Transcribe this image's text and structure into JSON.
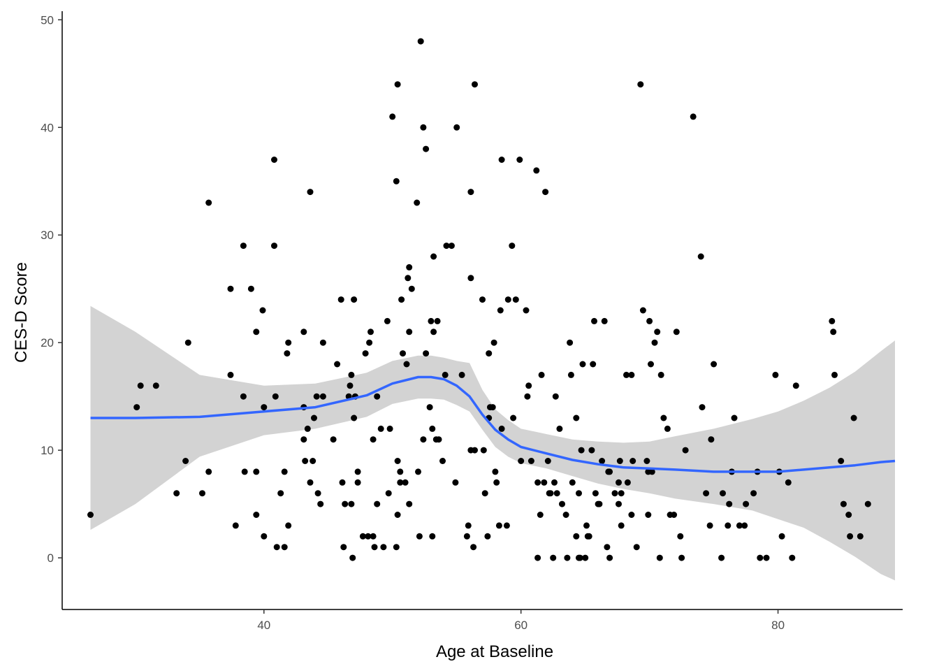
{
  "chart_data": {
    "type": "scatter",
    "title": "",
    "xlabel": "Age at Baseline",
    "ylabel": "CES-D Score",
    "xlim": [
      24.3,
      89.7
    ],
    "ylim": [
      -4.8,
      50.8
    ],
    "x_ticks": [
      40,
      60,
      80
    ],
    "y_ticks": [
      0,
      10,
      20,
      30,
      40,
      50
    ],
    "grid": false,
    "colors": {
      "points": "#000000",
      "smooth_line": "#3366ff",
      "ribbon": "#d3d3d3",
      "axis": "#000000"
    },
    "points": [
      [
        26.5,
        4
      ],
      [
        30.1,
        14
      ],
      [
        30.4,
        16
      ],
      [
        31.6,
        16
      ],
      [
        33.2,
        6
      ],
      [
        33.9,
        9
      ],
      [
        34.1,
        20
      ],
      [
        35.2,
        6
      ],
      [
        35.7,
        8
      ],
      [
        35.7,
        33
      ],
      [
        37.4,
        25
      ],
      [
        37.4,
        17
      ],
      [
        37.8,
        3
      ],
      [
        38.4,
        29
      ],
      [
        38.4,
        15
      ],
      [
        38.5,
        8
      ],
      [
        39.0,
        25
      ],
      [
        39.4,
        21
      ],
      [
        39.4,
        8
      ],
      [
        39.4,
        4
      ],
      [
        39.9,
        23
      ],
      [
        40.0,
        14
      ],
      [
        40.0,
        2
      ],
      [
        40.8,
        37
      ],
      [
        40.8,
        29
      ],
      [
        40.9,
        15
      ],
      [
        41.0,
        1
      ],
      [
        41.3,
        6
      ],
      [
        41.6,
        8
      ],
      [
        41.6,
        1
      ],
      [
        41.8,
        19
      ],
      [
        41.9,
        20
      ],
      [
        41.9,
        3
      ],
      [
        43.1,
        21
      ],
      [
        43.1,
        11
      ],
      [
        43.1,
        14
      ],
      [
        43.2,
        9
      ],
      [
        43.4,
        12
      ],
      [
        43.6,
        34
      ],
      [
        43.6,
        7
      ],
      [
        43.8,
        9
      ],
      [
        43.9,
        13
      ],
      [
        44.1,
        15
      ],
      [
        44.2,
        6
      ],
      [
        44.4,
        5
      ],
      [
        44.6,
        20
      ],
      [
        44.6,
        15
      ],
      [
        45.4,
        11
      ],
      [
        45.7,
        18
      ],
      [
        46.0,
        24
      ],
      [
        46.1,
        7
      ],
      [
        46.2,
        1
      ],
      [
        46.3,
        5
      ],
      [
        46.6,
        15
      ],
      [
        46.7,
        16
      ],
      [
        46.8,
        17
      ],
      [
        46.8,
        5
      ],
      [
        46.9,
        0
      ],
      [
        47.0,
        24
      ],
      [
        47.0,
        13
      ],
      [
        47.1,
        15
      ],
      [
        47.3,
        8
      ],
      [
        47.3,
        7
      ],
      [
        47.7,
        2
      ],
      [
        47.9,
        19
      ],
      [
        48.1,
        2
      ],
      [
        48.2,
        20
      ],
      [
        48.3,
        21
      ],
      [
        48.5,
        2
      ],
      [
        48.5,
        11
      ],
      [
        48.6,
        1
      ],
      [
        48.8,
        15
      ],
      [
        48.8,
        5
      ],
      [
        49.1,
        12
      ],
      [
        49.3,
        1
      ],
      [
        49.6,
        22
      ],
      [
        49.7,
        6
      ],
      [
        49.8,
        12
      ],
      [
        50.0,
        41
      ],
      [
        50.3,
        1
      ],
      [
        50.3,
        35
      ],
      [
        50.4,
        4
      ],
      [
        50.4,
        44
      ],
      [
        50.4,
        9
      ],
      [
        50.6,
        7
      ],
      [
        50.6,
        8
      ],
      [
        50.7,
        24
      ],
      [
        50.8,
        19
      ],
      [
        51.0,
        7
      ],
      [
        51.1,
        18
      ],
      [
        51.2,
        26
      ],
      [
        51.3,
        27
      ],
      [
        51.3,
        21
      ],
      [
        51.3,
        5
      ],
      [
        51.5,
        25
      ],
      [
        51.9,
        33
      ],
      [
        52.0,
        8
      ],
      [
        52.1,
        2
      ],
      [
        52.2,
        48
      ],
      [
        52.4,
        40
      ],
      [
        52.4,
        11
      ],
      [
        52.6,
        38
      ],
      [
        52.6,
        19
      ],
      [
        52.9,
        14
      ],
      [
        53.0,
        22
      ],
      [
        53.1,
        12
      ],
      [
        53.1,
        2
      ],
      [
        53.2,
        21
      ],
      [
        53.2,
        28
      ],
      [
        53.4,
        11
      ],
      [
        53.5,
        22
      ],
      [
        53.6,
        11
      ],
      [
        53.9,
        9
      ],
      [
        54.1,
        17
      ],
      [
        54.2,
        29
      ],
      [
        54.6,
        29
      ],
      [
        54.9,
        7
      ],
      [
        55.0,
        40
      ],
      [
        55.4,
        17
      ],
      [
        55.8,
        2
      ],
      [
        55.9,
        3
      ],
      [
        56.1,
        26
      ],
      [
        56.1,
        10
      ],
      [
        56.1,
        34
      ],
      [
        56.3,
        1
      ],
      [
        56.4,
        10
      ],
      [
        56.4,
        44
      ],
      [
        57.0,
        24
      ],
      [
        57.1,
        10
      ],
      [
        57.2,
        6
      ],
      [
        57.4,
        2
      ],
      [
        57.5,
        19
      ],
      [
        57.5,
        13
      ],
      [
        57.6,
        14
      ],
      [
        57.8,
        14
      ],
      [
        57.9,
        20
      ],
      [
        58.0,
        8
      ],
      [
        58.1,
        7
      ],
      [
        58.3,
        3
      ],
      [
        58.4,
        23
      ],
      [
        58.5,
        37
      ],
      [
        58.5,
        12
      ],
      [
        58.9,
        3
      ],
      [
        59.0,
        24
      ],
      [
        59.3,
        29
      ],
      [
        59.4,
        13
      ],
      [
        59.6,
        24
      ],
      [
        59.9,
        37
      ],
      [
        60.0,
        9
      ],
      [
        60.4,
        23
      ],
      [
        60.5,
        15
      ],
      [
        60.6,
        16
      ],
      [
        60.8,
        9
      ],
      [
        61.2,
        36
      ],
      [
        61.3,
        7
      ],
      [
        61.3,
        0
      ],
      [
        61.5,
        4
      ],
      [
        61.6,
        17
      ],
      [
        61.8,
        7
      ],
      [
        61.9,
        34
      ],
      [
        62.1,
        9
      ],
      [
        62.2,
        6
      ],
      [
        62.3,
        6
      ],
      [
        62.5,
        0
      ],
      [
        62.6,
        7
      ],
      [
        62.7,
        15
      ],
      [
        62.8,
        6
      ],
      [
        63.0,
        12
      ],
      [
        63.2,
        5
      ],
      [
        63.5,
        4
      ],
      [
        63.6,
        0
      ],
      [
        63.8,
        20
      ],
      [
        63.9,
        17
      ],
      [
        64.0,
        7
      ],
      [
        64.3,
        13
      ],
      [
        64.3,
        2
      ],
      [
        64.5,
        0
      ],
      [
        64.5,
        6
      ],
      [
        64.6,
        0
      ],
      [
        64.7,
        10
      ],
      [
        64.8,
        18
      ],
      [
        65.0,
        0
      ],
      [
        65.1,
        3
      ],
      [
        65.2,
        2
      ],
      [
        65.3,
        2
      ],
      [
        65.5,
        10
      ],
      [
        65.6,
        18
      ],
      [
        65.7,
        22
      ],
      [
        65.8,
        6
      ],
      [
        66.0,
        5
      ],
      [
        66.1,
        5
      ],
      [
        66.3,
        9
      ],
      [
        66.5,
        22
      ],
      [
        66.7,
        1
      ],
      [
        66.8,
        8
      ],
      [
        66.9,
        8
      ],
      [
        66.9,
        0
      ],
      [
        67.3,
        6
      ],
      [
        67.6,
        5
      ],
      [
        67.6,
        7
      ],
      [
        67.7,
        9
      ],
      [
        67.8,
        3
      ],
      [
        67.8,
        6
      ],
      [
        68.2,
        17
      ],
      [
        68.3,
        7
      ],
      [
        68.6,
        17
      ],
      [
        68.6,
        4
      ],
      [
        68.7,
        9
      ],
      [
        69.0,
        1
      ],
      [
        69.3,
        44
      ],
      [
        69.5,
        23
      ],
      [
        69.8,
        9
      ],
      [
        69.9,
        8
      ],
      [
        69.9,
        4
      ],
      [
        70.0,
        22
      ],
      [
        70.1,
        18
      ],
      [
        70.2,
        8
      ],
      [
        70.4,
        20
      ],
      [
        70.6,
        21
      ],
      [
        70.8,
        0
      ],
      [
        70.9,
        17
      ],
      [
        71.1,
        13
      ],
      [
        71.4,
        12
      ],
      [
        71.6,
        4
      ],
      [
        71.9,
        4
      ],
      [
        72.1,
        21
      ],
      [
        72.4,
        2
      ],
      [
        72.5,
        0
      ],
      [
        72.8,
        10
      ],
      [
        73.4,
        41
      ],
      [
        74.0,
        28
      ],
      [
        74.1,
        14
      ],
      [
        74.4,
        6
      ],
      [
        74.7,
        3
      ],
      [
        74.8,
        11
      ],
      [
        75.0,
        18
      ],
      [
        75.6,
        0
      ],
      [
        75.7,
        6
      ],
      [
        76.1,
        3
      ],
      [
        76.2,
        5
      ],
      [
        76.4,
        8
      ],
      [
        76.6,
        13
      ],
      [
        77.0,
        3
      ],
      [
        77.4,
        3
      ],
      [
        77.5,
        5
      ],
      [
        78.1,
        6
      ],
      [
        78.4,
        8
      ],
      [
        78.6,
        0
      ],
      [
        79.1,
        0
      ],
      [
        79.8,
        17
      ],
      [
        80.1,
        8
      ],
      [
        80.3,
        2
      ],
      [
        80.8,
        7
      ],
      [
        81.1,
        0
      ],
      [
        81.4,
        16
      ],
      [
        84.2,
        22
      ],
      [
        84.3,
        21
      ],
      [
        84.4,
        17
      ],
      [
        84.9,
        9
      ],
      [
        85.1,
        5
      ],
      [
        85.5,
        4
      ],
      [
        85.6,
        2
      ],
      [
        85.9,
        13
      ],
      [
        86.4,
        2
      ],
      [
        87.0,
        5
      ]
    ],
    "smooth_line": {
      "x": [
        26.5,
        30,
        35,
        40,
        44,
        48,
        50,
        52,
        53,
        54,
        55,
        56,
        57,
        58,
        59,
        60,
        62,
        64,
        66,
        68,
        70,
        72,
        75,
        78,
        80,
        82,
        84,
        86,
        88,
        89.1
      ],
      "y": [
        13.0,
        13.0,
        13.1,
        13.6,
        14.0,
        15.1,
        16.2,
        16.8,
        16.8,
        16.6,
        16.0,
        15.0,
        13.3,
        11.9,
        11.0,
        10.3,
        9.7,
        9.1,
        8.7,
        8.4,
        8.3,
        8.2,
        8.0,
        8.0,
        8.0,
        8.2,
        8.4,
        8.6,
        8.9,
        9.0
      ]
    },
    "ribbon": {
      "x": [
        26.5,
        30,
        35,
        40,
        44,
        48,
        50,
        52,
        53,
        54,
        55,
        56,
        57,
        58,
        59,
        60,
        62,
        64,
        66,
        68,
        70,
        72,
        75,
        78,
        80,
        82,
        84,
        86,
        88,
        89.1
      ],
      "upper": [
        23.4,
        21.0,
        17.0,
        16.0,
        16.2,
        17.2,
        18.3,
        18.8,
        18.8,
        18.6,
        18.3,
        18.1,
        15.6,
        13.8,
        12.8,
        12.0,
        11.5,
        11.0,
        10.8,
        10.7,
        10.8,
        11.3,
        12.0,
        12.9,
        13.6,
        14.6,
        15.8,
        17.3,
        19.2,
        20.2
      ],
      "lower": [
        2.6,
        5.0,
        9.4,
        11.4,
        12.0,
        13.1,
        14.3,
        14.8,
        14.8,
        14.7,
        14.2,
        13.6,
        11.9,
        10.3,
        9.4,
        8.8,
        8.3,
        7.6,
        6.9,
        6.4,
        6.0,
        5.5,
        5.0,
        4.4,
        3.6,
        2.8,
        1.5,
        0.1,
        -1.5,
        -2.1
      ]
    }
  }
}
